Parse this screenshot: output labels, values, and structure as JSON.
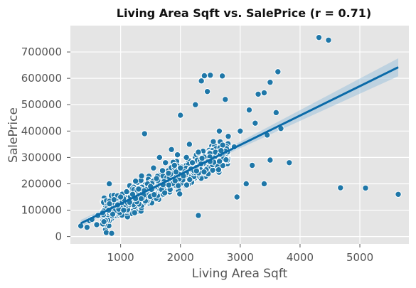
{
  "chart_data": {
    "type": "scatter",
    "title": "Living Area Sqft vs. SalePrice (r = 0.71)",
    "xlabel": "Living Area Sqft",
    "ylabel": "SalePrice",
    "xlim": [
      160,
      5820
    ],
    "ylim": [
      -28000,
      800000
    ],
    "xticks": [
      1000,
      2000,
      3000,
      4000,
      5000
    ],
    "xtick_labels": [
      "1000",
      "2000",
      "3000",
      "4000",
      "5000"
    ],
    "yticks": [
      0,
      100000,
      200000,
      300000,
      400000,
      500000,
      600000,
      700000
    ],
    "ytick_labels": [
      "0",
      "100000",
      "200000",
      "300000",
      "400000",
      "500000",
      "600000",
      "700000"
    ],
    "grid": true,
    "background": "#e5e5e5",
    "point_color": "#1f77a8",
    "point_edge": "#ffffff",
    "line_color": "#0a6aa8",
    "band_color": "#9ec3dc",
    "correlation_r": 0.71,
    "regression": {
      "x": [
        334,
        5642
      ],
      "y": [
        50000,
        642000
      ]
    },
    "confidence_band": {
      "x": [
        334,
        2000,
        5642
      ],
      "lower": [
        37000,
        232000,
        608000
      ],
      "upper": [
        63000,
        240000,
        676000
      ]
    },
    "points": [
      [
        334,
        40000
      ],
      [
        438,
        35000
      ],
      [
        480,
        60000
      ],
      [
        520,
        65000
      ],
      [
        600,
        45000
      ],
      [
        620,
        80000
      ],
      [
        700,
        90000
      ],
      [
        760,
        15000
      ],
      [
        800,
        100000
      ],
      [
        850,
        12000
      ],
      [
        810,
        200000
      ],
      [
        890,
        140000
      ],
      [
        950,
        120000
      ],
      [
        1000,
        150000
      ],
      [
        1050,
        100000
      ],
      [
        1100,
        170000
      ],
      [
        1150,
        130000
      ],
      [
        1200,
        160000
      ],
      [
        1250,
        210000
      ],
      [
        1300,
        180000
      ],
      [
        1350,
        230000
      ],
      [
        1400,
        390000
      ],
      [
        1450,
        200000
      ],
      [
        1500,
        190000
      ],
      [
        1550,
        260000
      ],
      [
        1600,
        220000
      ],
      [
        1650,
        300000
      ],
      [
        1700,
        250000
      ],
      [
        1750,
        280000
      ],
      [
        1800,
        240000
      ],
      [
        1850,
        330000
      ],
      [
        1900,
        270000
      ],
      [
        1950,
        310000
      ],
      [
        2000,
        260000
      ],
      [
        2000,
        460000
      ],
      [
        2050,
        230000
      ],
      [
        2100,
        300000
      ],
      [
        2150,
        350000
      ],
      [
        2200,
        280000
      ],
      [
        2250,
        500000
      ],
      [
        2300,
        320000
      ],
      [
        2300,
        80000
      ],
      [
        2350,
        590000
      ],
      [
        2400,
        610000
      ],
      [
        2450,
        550000
      ],
      [
        2500,
        612000
      ],
      [
        2550,
        360000
      ],
      [
        2650,
        400000
      ],
      [
        2700,
        609000
      ],
      [
        2750,
        520000
      ],
      [
        2800,
        380000
      ],
      [
        2900,
        340000
      ],
      [
        2945,
        150000
      ],
      [
        3000,
        400000
      ],
      [
        3100,
        200000
      ],
      [
        3150,
        480000
      ],
      [
        3200,
        270000
      ],
      [
        3250,
        430000
      ],
      [
        3300,
        540000
      ],
      [
        3400,
        200000
      ],
      [
        3400,
        545000
      ],
      [
        3450,
        385000
      ],
      [
        3500,
        290000
      ],
      [
        3500,
        585000
      ],
      [
        3600,
        470000
      ],
      [
        3630,
        625000
      ],
      [
        3680,
        410000
      ],
      [
        3820,
        280000
      ],
      [
        4316,
        755000
      ],
      [
        4476,
        745000
      ],
      [
        4676,
        185000
      ],
      [
        5095,
        184000
      ],
      [
        5642,
        160000
      ]
    ],
    "cloud": {
      "x_range": [
        700,
        2800
      ],
      "slope": 110,
      "intercept": 10000,
      "spread": 60000,
      "count": 900,
      "seed": 7
    }
  }
}
